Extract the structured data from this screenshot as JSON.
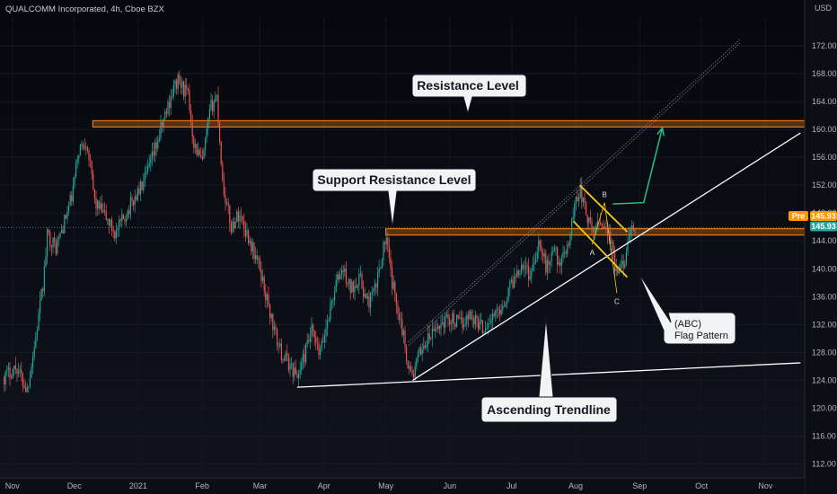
{
  "header": {
    "title": "QUALCOMM Incorporated, 4h, Cboe BZX"
  },
  "price_axis": {
    "currency": "USD",
    "ticks": [
      "172.00",
      "168.00",
      "164.00",
      "160.00",
      "156.00",
      "152.00",
      "148.00",
      "144.00",
      "140.00",
      "136.00",
      "132.00",
      "128.00",
      "124.00",
      "120.00",
      "116.00",
      "112.00"
    ]
  },
  "time_axis": {
    "ticks": [
      "Nov",
      "Dec",
      "2021",
      "Feb",
      "Mar",
      "Apr",
      "May",
      "Jun",
      "Jul",
      "Aug",
      "Sep",
      "Oct",
      "Nov"
    ]
  },
  "price_tags": {
    "pre_label": "Pre",
    "pre_value": "145.93",
    "last_value": "145.93"
  },
  "annotations": {
    "resistance": "Resistance Level",
    "support_resistance": "Support Resistance Level",
    "ascending_trendline": "Ascending Trendline",
    "flag_line1": "(ABC)",
    "flag_line2": "Flag Pattern",
    "wave_a": "A",
    "wave_b": "B",
    "wave_c": "C"
  },
  "chart_data": {
    "type": "candlestick",
    "title": "QUALCOMM Incorporated, 4h, Cboe BZX",
    "ylabel": "USD",
    "ylim": [
      110,
      176
    ],
    "x_axis": {
      "type": "date",
      "range": [
        "2020-10-26",
        "2021-11-20"
      ],
      "ticks": [
        "Nov",
        "Dec",
        "2021",
        "Feb",
        "Mar",
        "Apr",
        "May",
        "Jun",
        "Jul",
        "Aug",
        "Sep",
        "Oct",
        "Nov"
      ]
    },
    "colors": {
      "up": "#26a69a",
      "down": "#ef5350",
      "level": "#e07b1d",
      "trend": "#ffffff",
      "flag": "#f5c518",
      "target": "#26c281"
    },
    "price_path": [
      {
        "t": "2020-10-28",
        "p": 124.5
      },
      {
        "t": "2020-11-03",
        "p": 126.0
      },
      {
        "t": "2020-11-08",
        "p": 122.5
      },
      {
        "t": "2020-11-12",
        "p": 129.5
      },
      {
        "t": "2020-11-16",
        "p": 138.0
      },
      {
        "t": "2020-11-18",
        "p": 145.0
      },
      {
        "t": "2020-11-22",
        "p": 143.0
      },
      {
        "t": "2020-11-26",
        "p": 146.5
      },
      {
        "t": "2020-11-30",
        "p": 150.5
      },
      {
        "t": "2020-12-03",
        "p": 157.0
      },
      {
        "t": "2020-12-07",
        "p": 158.5
      },
      {
        "t": "2020-12-11",
        "p": 149.5
      },
      {
        "t": "2020-12-16",
        "p": 147.5
      },
      {
        "t": "2020-12-21",
        "p": 145.0
      },
      {
        "t": "2020-12-28",
        "p": 149.0
      },
      {
        "t": "2021-01-04",
        "p": 152.5
      },
      {
        "t": "2021-01-08",
        "p": 156.0
      },
      {
        "t": "2021-01-12",
        "p": 160.0
      },
      {
        "t": "2021-01-17",
        "p": 165.0
      },
      {
        "t": "2021-01-20",
        "p": 167.0
      },
      {
        "t": "2021-01-25",
        "p": 165.0
      },
      {
        "t": "2021-01-28",
        "p": 158.0
      },
      {
        "t": "2021-02-01",
        "p": 155.0
      },
      {
        "t": "2021-02-05",
        "p": 163.0
      },
      {
        "t": "2021-02-08",
        "p": 165.0
      },
      {
        "t": "2021-02-11",
        "p": 152.0
      },
      {
        "t": "2021-02-15",
        "p": 146.0
      },
      {
        "t": "2021-02-19",
        "p": 148.0
      },
      {
        "t": "2021-02-24",
        "p": 144.0
      },
      {
        "t": "2021-03-01",
        "p": 140.0
      },
      {
        "t": "2021-03-04",
        "p": 136.0
      },
      {
        "t": "2021-03-08",
        "p": 131.0
      },
      {
        "t": "2021-03-11",
        "p": 128.0
      },
      {
        "t": "2021-03-16",
        "p": 126.0
      },
      {
        "t": "2021-03-19",
        "p": 124.5
      },
      {
        "t": "2021-03-22",
        "p": 127.0
      },
      {
        "t": "2021-03-26",
        "p": 131.0
      },
      {
        "t": "2021-03-30",
        "p": 127.5
      },
      {
        "t": "2021-04-03",
        "p": 133.0
      },
      {
        "t": "2021-04-07",
        "p": 138.0
      },
      {
        "t": "2021-04-10",
        "p": 140.0
      },
      {
        "t": "2021-04-14",
        "p": 137.0
      },
      {
        "t": "2021-04-18",
        "p": 139.0
      },
      {
        "t": "2021-04-22",
        "p": 135.0
      },
      {
        "t": "2021-04-26",
        "p": 137.0
      },
      {
        "t": "2021-04-29",
        "p": 142.0
      },
      {
        "t": "2021-05-01",
        "p": 144.5
      },
      {
        "t": "2021-05-04",
        "p": 138.0
      },
      {
        "t": "2021-05-08",
        "p": 133.0
      },
      {
        "t": "2021-05-12",
        "p": 126.0
      },
      {
        "t": "2021-05-14",
        "p": 124.5
      },
      {
        "t": "2021-05-18",
        "p": 128.5
      },
      {
        "t": "2021-05-22",
        "p": 130.0
      },
      {
        "t": "2021-05-27",
        "p": 132.0
      },
      {
        "t": "2021-06-01",
        "p": 133.0
      },
      {
        "t": "2021-06-06",
        "p": 132.0
      },
      {
        "t": "2021-06-11",
        "p": 133.5
      },
      {
        "t": "2021-06-17",
        "p": 131.5
      },
      {
        "t": "2021-06-22",
        "p": 133.0
      },
      {
        "t": "2021-06-27",
        "p": 135.0
      },
      {
        "t": "2021-07-01",
        "p": 138.0
      },
      {
        "t": "2021-07-06",
        "p": 141.0
      },
      {
        "t": "2021-07-10",
        "p": 139.0
      },
      {
        "t": "2021-07-14",
        "p": 144.0
      },
      {
        "t": "2021-07-18",
        "p": 140.0
      },
      {
        "t": "2021-07-21",
        "p": 143.0
      },
      {
        "t": "2021-07-25",
        "p": 140.5
      },
      {
        "t": "2021-07-29",
        "p": 144.5
      },
      {
        "t": "2021-08-01",
        "p": 150.0
      },
      {
        "t": "2021-08-03",
        "p": 151.5
      },
      {
        "t": "2021-08-06",
        "p": 148.0
      },
      {
        "t": "2021-08-09",
        "p": 145.0
      },
      {
        "t": "2021-08-12",
        "p": 147.0
      },
      {
        "t": "2021-08-15",
        "p": 146.5
      },
      {
        "t": "2021-08-18",
        "p": 144.0
      },
      {
        "t": "2021-08-20",
        "p": 140.0
      },
      {
        "t": "2021-08-22",
        "p": 139.0
      },
      {
        "t": "2021-08-25",
        "p": 142.0
      },
      {
        "t": "2021-08-28",
        "p": 145.0
      },
      {
        "t": "2021-08-30",
        "p": 145.93
      }
    ],
    "levels": [
      {
        "name": "Resistance Level",
        "price": 160.8,
        "from": "2020-12-10",
        "to": "2021-11-20"
      },
      {
        "name": "Support Resistance Level",
        "price": 145.3,
        "from": "2021-05-01",
        "to": "2021-11-20"
      }
    ],
    "trendlines": [
      {
        "name": "Ascending Trendline",
        "points": [
          {
            "t": "2021-05-14",
            "p": 124.0
          },
          {
            "t": "2021-11-18",
            "p": 159.5
          }
        ]
      },
      {
        "name": "",
        "points": [
          {
            "t": "2021-03-19",
            "p": 123.0
          },
          {
            "t": "2021-11-18",
            "p": 126.5
          }
        ]
      }
    ],
    "channel_lines": [
      {
        "points": [
          {
            "t": "2021-05-12",
            "p": 129.5
          },
          {
            "t": "2021-10-20",
            "p": 173.0
          }
        ]
      },
      {
        "points": [
          {
            "t": "2021-05-12",
            "p": 129.0
          },
          {
            "t": "2021-10-20",
            "p": 172.5
          }
        ]
      }
    ],
    "flag": {
      "upper": [
        {
          "t": "2021-08-03",
          "p": 152.0
        },
        {
          "t": "2021-08-26",
          "p": 145.3
        }
      ],
      "lower": [
        {
          "t": "2021-07-31",
          "p": 146.8
        },
        {
          "t": "2021-08-26",
          "p": 138.8
        }
      ]
    },
    "waves": [
      {
        "label": "A",
        "t": "2021-08-09",
        "p": 143.5
      },
      {
        "label": "B",
        "t": "2021-08-15",
        "p": 149.5
      },
      {
        "label": "C",
        "t": "2021-08-21",
        "p": 136.5
      }
    ],
    "target_arrow": {
      "points": [
        {
          "t": "2021-08-19",
          "p": 149.3
        },
        {
          "t": "2021-09-03",
          "p": 149.5
        },
        {
          "t": "2021-09-12",
          "p": 160.2
        }
      ]
    },
    "last_price": 145.93
  }
}
